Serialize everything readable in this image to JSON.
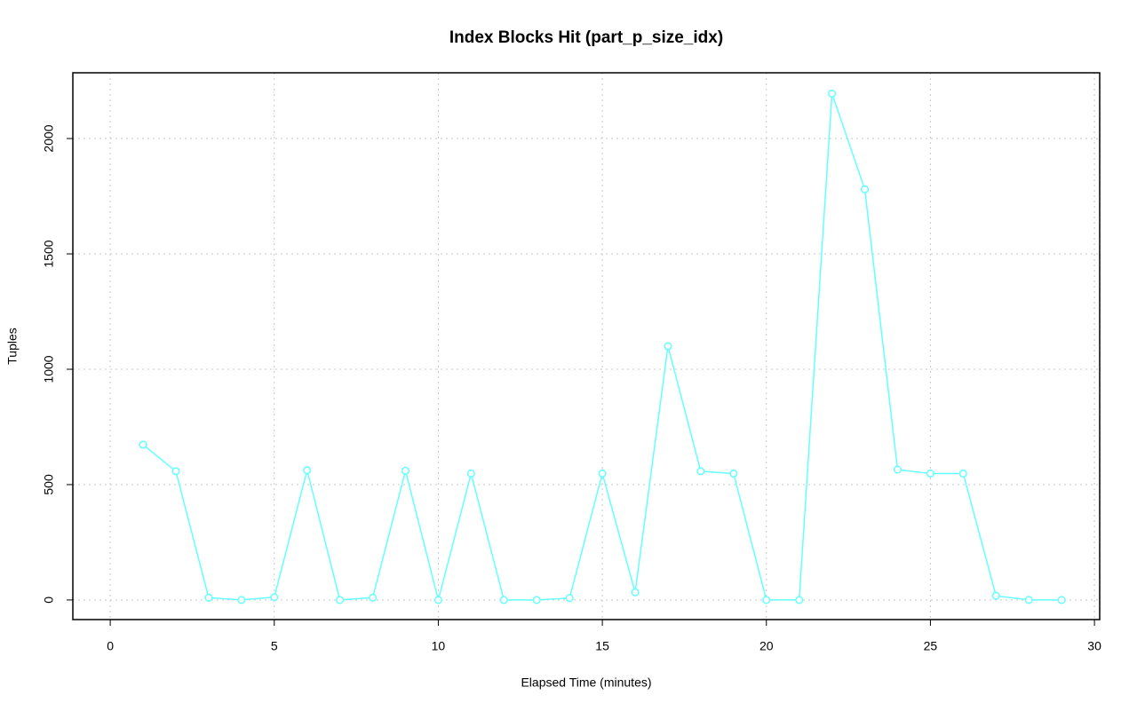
{
  "chart_data": {
    "type": "line",
    "title": "Index Blocks Hit (part_p_size_idx)",
    "xlabel": "Elapsed Time (minutes)",
    "ylabel": "Tuples",
    "x": [
      1,
      2,
      3,
      4,
      5,
      6,
      7,
      8,
      9,
      10,
      11,
      12,
      13,
      14,
      15,
      16,
      17,
      18,
      19,
      20,
      21,
      22,
      23,
      24,
      25,
      26,
      27,
      28,
      29
    ],
    "series": [
      {
        "name": "part_p_size_idx",
        "color": "#66ffff",
        "values": [
          673,
          558,
          10,
          0,
          12,
          562,
          0,
          10,
          560,
          0,
          548,
          0,
          0,
          8,
          548,
          33,
          1100,
          558,
          548,
          0,
          0,
          2195,
          1780,
          565,
          548,
          548,
          18,
          0,
          0
        ]
      }
    ],
    "xlim": [
      -1.14,
      30.16
    ],
    "xticks": [
      0,
      5,
      10,
      15,
      20,
      25,
      30
    ],
    "ylim": [
      -85,
      2285
    ],
    "yticks": [
      0,
      500,
      1000,
      1500,
      2000
    ],
    "grid": true
  }
}
